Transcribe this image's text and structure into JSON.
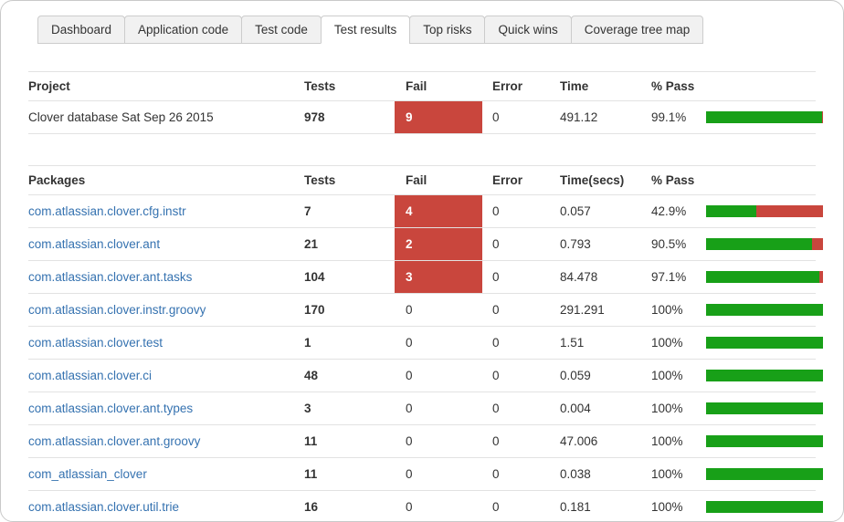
{
  "colors": {
    "green": "#18a018",
    "red": "#c9463d",
    "link": "#3572b0"
  },
  "tabs": [
    {
      "label": "Dashboard",
      "active": false
    },
    {
      "label": "Application code",
      "active": false
    },
    {
      "label": "Test code",
      "active": false
    },
    {
      "label": "Test results",
      "active": true
    },
    {
      "label": "Top risks",
      "active": false
    },
    {
      "label": "Quick wins",
      "active": false
    },
    {
      "label": "Coverage tree map",
      "active": false
    }
  ],
  "project": {
    "headers": {
      "name": "Project",
      "tests": "Tests",
      "fail": "Fail",
      "error": "Error",
      "time": "Time",
      "pass": "% Pass"
    },
    "rows": [
      {
        "name": "Clover database Sat Sep 26 2015",
        "tests": "978",
        "fail": "9",
        "error": "0",
        "time": "491.12",
        "pass": "99.1%",
        "pass_pct": 99.1
      }
    ]
  },
  "packages": {
    "headers": {
      "name": "Packages",
      "tests": "Tests",
      "fail": "Fail",
      "error": "Error",
      "time": "Time(secs)",
      "pass": "% Pass"
    },
    "rows": [
      {
        "name": "com.atlassian.clover.cfg.instr",
        "tests": "7",
        "fail": "4",
        "error": "0",
        "time": "0.057",
        "pass": "42.9%",
        "pass_pct": 42.9
      },
      {
        "name": "com.atlassian.clover.ant",
        "tests": "21",
        "fail": "2",
        "error": "0",
        "time": "0.793",
        "pass": "90.5%",
        "pass_pct": 90.5
      },
      {
        "name": "com.atlassian.clover.ant.tasks",
        "tests": "104",
        "fail": "3",
        "error": "0",
        "time": "84.478",
        "pass": "97.1%",
        "pass_pct": 97.1
      },
      {
        "name": "com.atlassian.clover.instr.groovy",
        "tests": "170",
        "fail": "0",
        "error": "0",
        "time": "291.291",
        "pass": "100%",
        "pass_pct": 100
      },
      {
        "name": "com.atlassian.clover.test",
        "tests": "1",
        "fail": "0",
        "error": "0",
        "time": "1.51",
        "pass": "100%",
        "pass_pct": 100
      },
      {
        "name": "com.atlassian.clover.ci",
        "tests": "48",
        "fail": "0",
        "error": "0",
        "time": "0.059",
        "pass": "100%",
        "pass_pct": 100
      },
      {
        "name": "com.atlassian.clover.ant.types",
        "tests": "3",
        "fail": "0",
        "error": "0",
        "time": "0.004",
        "pass": "100%",
        "pass_pct": 100
      },
      {
        "name": "com.atlassian.clover.ant.groovy",
        "tests": "11",
        "fail": "0",
        "error": "0",
        "time": "47.006",
        "pass": "100%",
        "pass_pct": 100
      },
      {
        "name": "com_atlassian_clover",
        "tests": "11",
        "fail": "0",
        "error": "0",
        "time": "0.038",
        "pass": "100%",
        "pass_pct": 100
      },
      {
        "name": "com.atlassian.clover.util.trie",
        "tests": "16",
        "fail": "0",
        "error": "0",
        "time": "0.181",
        "pass": "100%",
        "pass_pct": 100
      }
    ]
  }
}
